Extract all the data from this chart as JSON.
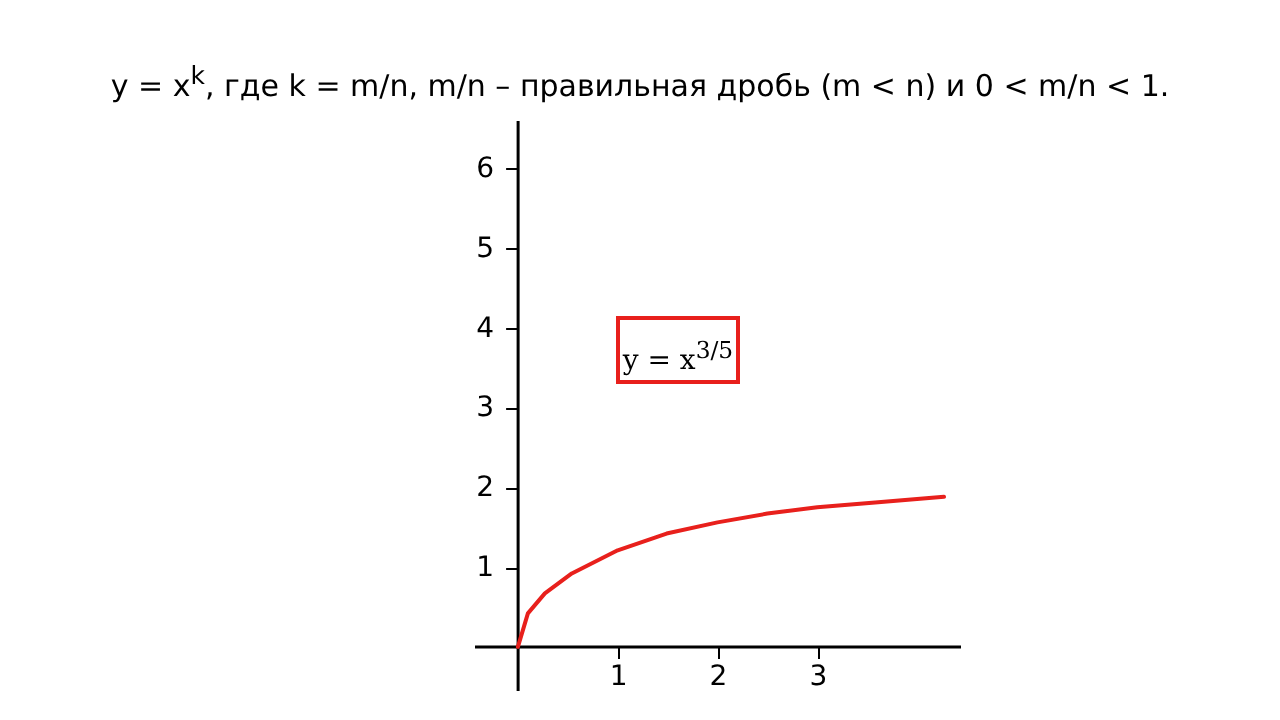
{
  "chart_data": {
    "type": "line",
    "title": "y = x$^{k}$, где k = m/n, m/n – правильная дробь (m < n) и 0 < m/n < 1.",
    "annotations": [
      "y = x$^{3/5}$"
    ],
    "x": [
      0,
      0.1,
      0.27,
      0.54,
      1,
      1.49,
      2,
      2.5,
      3,
      3.58,
      4.27
    ],
    "series": [
      {
        "color": "#e8201c",
        "values": [
          0,
          0.42,
          0.67,
          0.92,
          1.21,
          1.42,
          1.56,
          1.67,
          1.75,
          1.81,
          1.88
        ]
      }
    ],
    "xlim": [
      -0.44,
      4.43
    ],
    "ylim": [
      -0.54,
      6.6
    ],
    "xticks": [
      1,
      2,
      3
    ],
    "yticks": [
      1,
      2,
      3,
      4,
      5,
      6
    ],
    "grid": false
  }
}
